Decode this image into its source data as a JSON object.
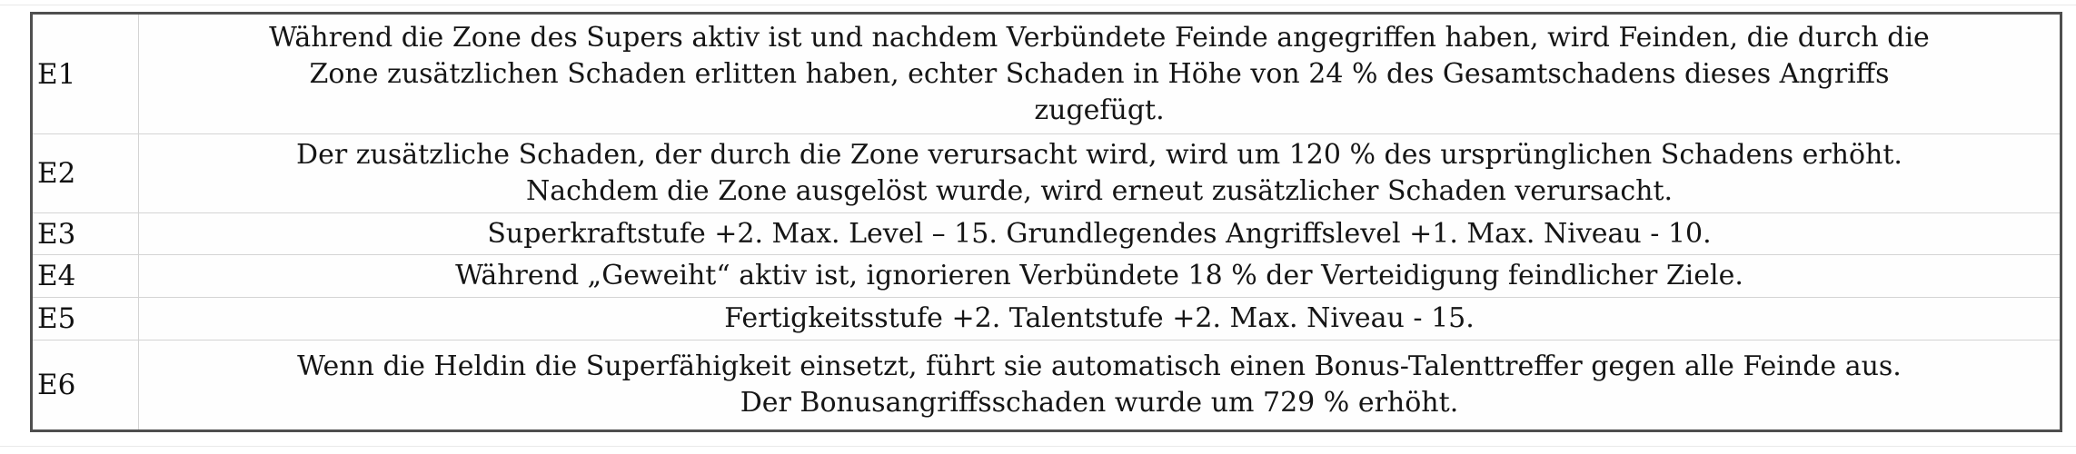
{
  "skill_table": {
    "rows": [
      {
        "id": "E1",
        "text": "Während die Zone des Supers aktiv ist und nachdem Verbündete Feinde angegriffen haben, wird Feinden, die durch die\nZone zusätzlichen Schaden erlitten haben, echter Schaden in Höhe von 24 % des Gesamtschadens dieses Angriffs\nzugefügt."
      },
      {
        "id": "E2",
        "text": "Der zusätzliche Schaden, der durch die Zone verursacht wird, wird um 120 % des ursprünglichen Schadens erhöht.\nNachdem die Zone ausgelöst wurde, wird erneut zusätzlicher Schaden verursacht."
      },
      {
        "id": "E3",
        "text": "Superkraftstufe +2. Max. Level – 15. Grundlegendes Angriffslevel +1. Max. Niveau - 10."
      },
      {
        "id": "E4",
        "text": "Während „Geweiht“ aktiv ist, ignorieren Verbündete 18 % der Verteidigung feindlicher Ziele."
      },
      {
        "id": "E5",
        "text": "Fertigkeitsstufe +2. Talentstufe +2. Max. Niveau - 15."
      },
      {
        "id": "E6",
        "text": "Wenn die Heldin die Superfähigkeit einsetzt, führt sie automatisch einen Bonus-Talenttreffer gegen alle Feinde aus.\nDer Bonusangriffsschaden wurde um 729 % erhöht."
      }
    ],
    "colors": {
      "outer_border": "#4f4f4f",
      "inner_border": "#d4d4d4",
      "background": "#fefefe",
      "text": "#151515"
    }
  }
}
